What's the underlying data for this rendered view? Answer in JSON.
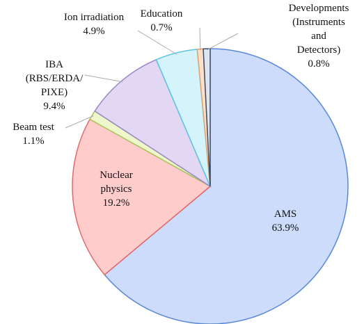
{
  "chart_data": {
    "type": "pie",
    "categories": [
      "AMS",
      "Nuclear\nphysics",
      "Beam test",
      "IBA\n(RBS/ERDA/\nPIXE)",
      "Ion irradiation",
      "Education",
      "Developments\n(Instruments and\nDetectors)"
    ],
    "values": [
      63.9,
      19.2,
      1.1,
      9.4,
      4.9,
      0.7,
      0.8
    ],
    "value_labels": [
      "63.9%",
      "19.2%",
      "1.1%",
      "9.4%",
      "4.9%",
      "0.7%",
      "0.8%"
    ],
    "colors": [
      "#cddcfa",
      "#ffcccc",
      "#eef6cc",
      "#e2d8f3",
      "#d4f3fb",
      "#fbe1cb",
      "#dfe6f3"
    ],
    "edge_colors": [
      "#5a86d8",
      "#e06a6a",
      "#a8c65a",
      "#9a86c8",
      "#5ac4e0",
      "#e0a070",
      "#404a60"
    ]
  }
}
